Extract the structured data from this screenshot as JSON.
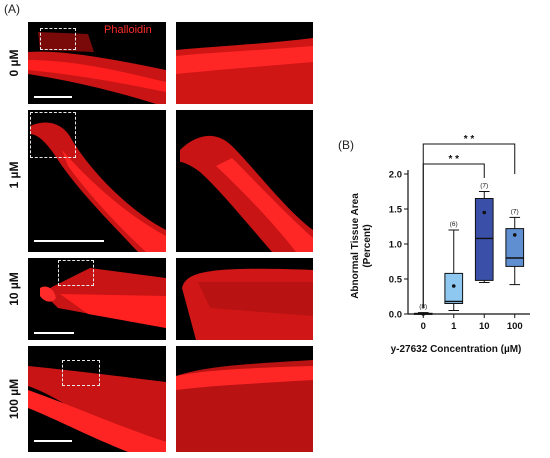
{
  "figure": {
    "panel_a_letter": "(A)",
    "panel_b_letter": "(B)",
    "stain_label": "Phalloidin",
    "rows": [
      {
        "label": "0 µM"
      },
      {
        "label": "1 µM"
      },
      {
        "label": "10 µM"
      },
      {
        "label": "100 µM"
      }
    ]
  },
  "chart_data": {
    "type": "box",
    "xlabel": "y-27632 Concentration (µM)",
    "ylabel_line1": "Abnormal Tissue Area",
    "ylabel_line2": "(Percent)",
    "categories": [
      "0",
      "1",
      "10",
      "100"
    ],
    "y_ticks": [
      "0.0",
      "0.5",
      "1.0",
      "1.5",
      "2.0"
    ],
    "ylim": [
      0,
      2.0
    ],
    "n_labels": [
      "(8)",
      "(6)",
      "(7)",
      "(7)"
    ],
    "boxes": [
      {
        "min": 0.0,
        "q1": 0.0,
        "median": 0.0,
        "q3": 0.01,
        "max": 0.02,
        "mean": 0.0,
        "color": "#5aa6e0"
      },
      {
        "min": 0.05,
        "q1": 0.15,
        "median": 0.18,
        "q3": 0.58,
        "max": 1.2,
        "mean": 0.4,
        "color": "#8ec7ef"
      },
      {
        "min": 0.45,
        "q1": 0.48,
        "median": 1.08,
        "q3": 1.65,
        "max": 1.75,
        "mean": 1.45,
        "color": "#3a4fa8"
      },
      {
        "min": 0.42,
        "q1": 0.68,
        "median": 0.8,
        "q3": 1.22,
        "max": 1.38,
        "mean": 1.13,
        "color": "#5f8fd0"
      }
    ],
    "significance": [
      {
        "from": "0",
        "to": "10",
        "label": "* *"
      },
      {
        "from": "0",
        "to": "100",
        "label": "* *"
      }
    ]
  }
}
